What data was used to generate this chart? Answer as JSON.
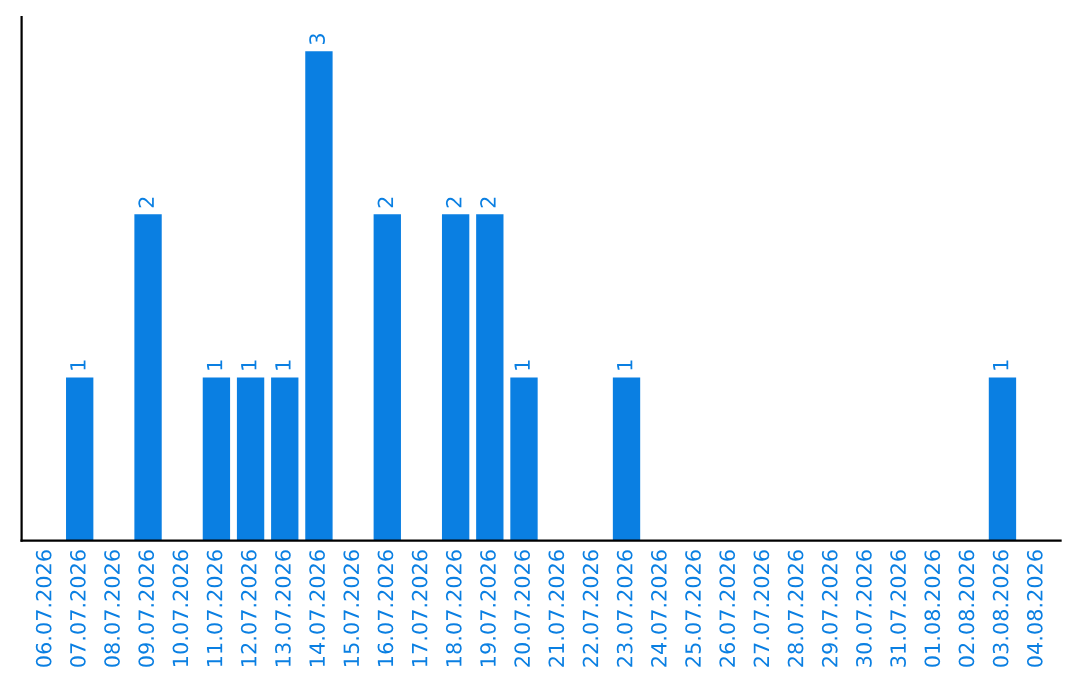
{
  "chart_data": {
    "type": "bar",
    "categories": [
      "06.07.2026",
      "07.07.2026",
      "08.07.2026",
      "09.07.2026",
      "10.07.2026",
      "11.07.2026",
      "12.07.2026",
      "13.07.2026",
      "14.07.2026",
      "15.07.2026",
      "16.07.2026",
      "17.07.2026",
      "18.07.2026",
      "19.07.2026",
      "20.07.2026",
      "21.07.2026",
      "22.07.2026",
      "23.07.2026",
      "24.07.2026",
      "25.07.2026",
      "26.07.2026",
      "27.07.2026",
      "28.07.2026",
      "29.07.2026",
      "30.07.2026",
      "31.07.2026",
      "01.08.2026",
      "02.08.2026",
      "03.08.2026",
      "04.08.2026"
    ],
    "values": [
      0,
      1,
      0,
      2,
      0,
      1,
      1,
      1,
      3,
      0,
      2,
      0,
      2,
      2,
      1,
      0,
      0,
      1,
      0,
      0,
      0,
      0,
      0,
      0,
      0,
      0,
      0,
      0,
      1,
      0
    ],
    "value_labels": [
      null,
      "1",
      null,
      "2",
      null,
      "1",
      "1",
      "1",
      "3",
      null,
      "2",
      null,
      "2",
      "2",
      "1",
      null,
      null,
      "1",
      null,
      null,
      null,
      null,
      null,
      null,
      null,
      null,
      null,
      null,
      "1",
      null
    ],
    "color": "#0a7fe2",
    "grid": false,
    "legend": false
  }
}
